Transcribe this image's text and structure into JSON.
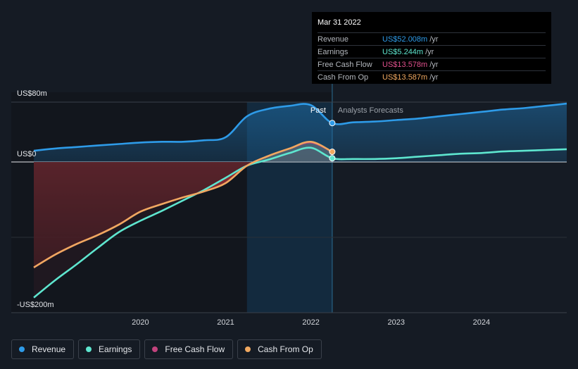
{
  "tooltip": {
    "date": "Mar 31 2022",
    "rows": [
      {
        "name": "Revenue",
        "value": "US$52.008m",
        "unit": "/yr",
        "color": "#2e9be8"
      },
      {
        "name": "Earnings",
        "value": "US$5.244m",
        "unit": "/yr",
        "color": "#5ee6cf"
      },
      {
        "name": "Free Cash Flow",
        "value": "US$13.578m",
        "unit": "/yr",
        "color": "#e0508c"
      },
      {
        "name": "Cash From Op",
        "value": "US$13.587m",
        "unit": "/yr",
        "color": "#f0a860"
      }
    ]
  },
  "labels": {
    "past": "Past",
    "forecast": "Analysts Forecasts"
  },
  "legend": [
    {
      "name": "Revenue",
      "color": "#2e9be8"
    },
    {
      "name": "Earnings",
      "color": "#5ee6cf"
    },
    {
      "name": "Free Cash Flow",
      "color": "#c2437d"
    },
    {
      "name": "Cash From Op",
      "color": "#f0a860"
    }
  ],
  "chart_data": {
    "type": "line",
    "x_unit": "year",
    "ylim": [
      -200,
      80
    ],
    "y_unit": "US$m",
    "ytick_labels": [
      {
        "value": 80,
        "label": "US$80m"
      },
      {
        "value": 0,
        "label": "US$0"
      },
      {
        "value": -200,
        "label": "-US$200m"
      }
    ],
    "xtick_labels": [
      {
        "value": 2020,
        "label": "2020"
      },
      {
        "value": 2021,
        "label": "2021"
      },
      {
        "value": 2022,
        "label": "2022"
      },
      {
        "value": 2023,
        "label": "2023"
      },
      {
        "value": 2024,
        "label": "2024"
      }
    ],
    "xlim": [
      2018.75,
      2025.0
    ],
    "past_end": 2022.25,
    "highlight_start": 2021.25,
    "grid": true,
    "series": [
      {
        "name": "Revenue",
        "color": "#2e9be8",
        "points": [
          [
            2018.75,
            15
          ],
          [
            2019.0,
            18
          ],
          [
            2019.25,
            20
          ],
          [
            2019.5,
            22
          ],
          [
            2019.75,
            24
          ],
          [
            2020.0,
            26
          ],
          [
            2020.25,
            27
          ],
          [
            2020.5,
            27
          ],
          [
            2020.75,
            29
          ],
          [
            2021.0,
            33
          ],
          [
            2021.25,
            61
          ],
          [
            2021.5,
            71
          ],
          [
            2021.75,
            75
          ],
          [
            2022.0,
            76
          ],
          [
            2022.25,
            52
          ],
          [
            2022.5,
            53
          ],
          [
            2022.75,
            54
          ],
          [
            2023.0,
            56
          ],
          [
            2023.25,
            58
          ],
          [
            2023.5,
            61
          ],
          [
            2023.75,
            64
          ],
          [
            2024.0,
            67
          ],
          [
            2024.25,
            70
          ],
          [
            2024.5,
            72
          ],
          [
            2024.75,
            75
          ],
          [
            2025.0,
            78
          ]
        ]
      },
      {
        "name": "Earnings",
        "color": "#5ee6cf",
        "points": [
          [
            2018.75,
            -180
          ],
          [
            2019.0,
            -157
          ],
          [
            2019.25,
            -136
          ],
          [
            2019.5,
            -114
          ],
          [
            2019.75,
            -93
          ],
          [
            2020.0,
            -78
          ],
          [
            2020.25,
            -65
          ],
          [
            2020.5,
            -51
          ],
          [
            2020.75,
            -37
          ],
          [
            2021.0,
            -21
          ],
          [
            2021.25,
            -5
          ],
          [
            2021.5,
            3
          ],
          [
            2021.75,
            12
          ],
          [
            2022.0,
            19
          ],
          [
            2022.25,
            5
          ],
          [
            2022.5,
            4
          ],
          [
            2022.75,
            4
          ],
          [
            2023.0,
            5
          ],
          [
            2023.25,
            7
          ],
          [
            2023.5,
            9
          ],
          [
            2023.75,
            11
          ],
          [
            2024.0,
            12
          ],
          [
            2024.25,
            14
          ],
          [
            2024.5,
            15
          ],
          [
            2024.75,
            16
          ],
          [
            2025.0,
            17
          ]
        ]
      },
      {
        "name": "Free Cash Flow",
        "color": "#c2437d",
        "points": [
          [
            2018.75,
            -140
          ],
          [
            2019.0,
            -123
          ],
          [
            2019.25,
            -109
          ],
          [
            2019.5,
            -97
          ],
          [
            2019.75,
            -83
          ],
          [
            2020.0,
            -66
          ],
          [
            2020.25,
            -56
          ],
          [
            2020.5,
            -47
          ],
          [
            2020.75,
            -39
          ],
          [
            2021.0,
            -28
          ],
          [
            2021.25,
            -5
          ],
          [
            2021.5,
            8
          ],
          [
            2021.75,
            18
          ],
          [
            2022.0,
            26
          ],
          [
            2022.25,
            13.6
          ]
        ]
      },
      {
        "name": "Cash From Op",
        "color": "#f0a860",
        "points": [
          [
            2018.75,
            -140
          ],
          [
            2019.0,
            -123
          ],
          [
            2019.25,
            -109
          ],
          [
            2019.5,
            -97
          ],
          [
            2019.75,
            -83
          ],
          [
            2020.0,
            -66
          ],
          [
            2020.25,
            -56
          ],
          [
            2020.5,
            -47
          ],
          [
            2020.75,
            -39
          ],
          [
            2021.0,
            -28
          ],
          [
            2021.25,
            -5
          ],
          [
            2021.5,
            8
          ],
          [
            2021.75,
            18
          ],
          [
            2022.0,
            27
          ],
          [
            2022.25,
            13.6
          ]
        ]
      }
    ]
  }
}
